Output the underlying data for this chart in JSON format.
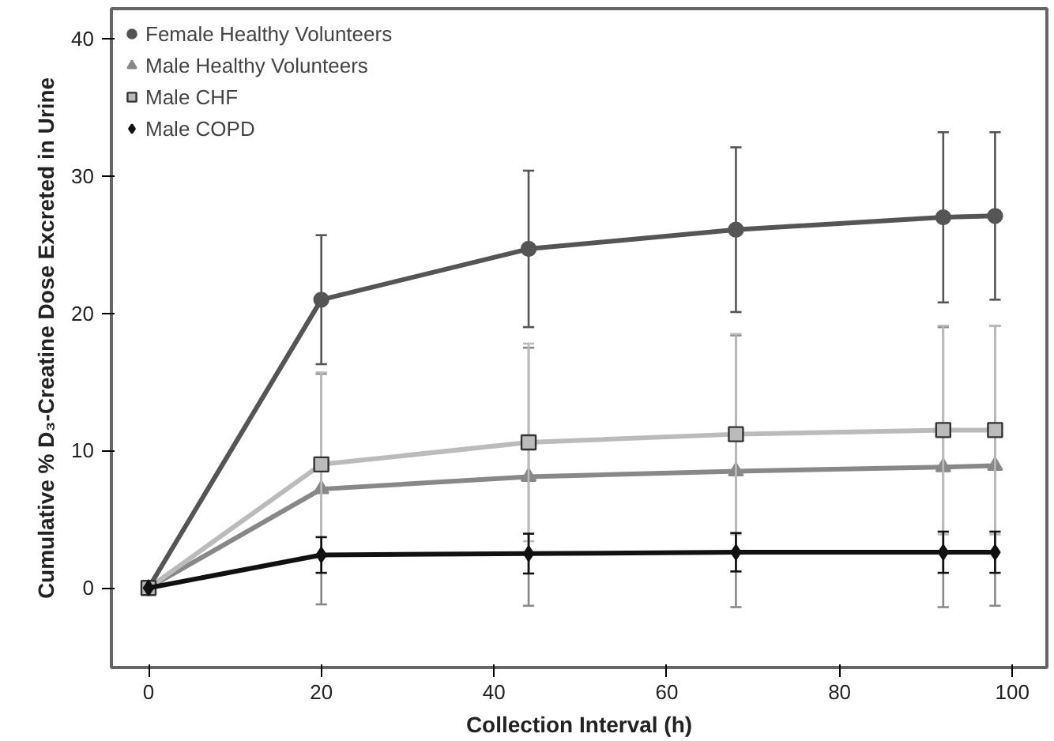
{
  "chart_data": {
    "type": "line",
    "xlabel": "Collection Interval (h)",
    "ylabel": "Cumulative % D₃-Creatine Dose Excreted in Urine",
    "x": [
      0,
      20,
      44,
      68,
      92,
      98
    ],
    "xlim": [
      -4.3,
      104
    ],
    "xticks": [
      0,
      20,
      40,
      60,
      80,
      100
    ],
    "ylim": [
      -5.8,
      42.2
    ],
    "yticks": [
      0,
      10,
      20,
      30,
      40
    ],
    "grid": false,
    "legend": "top left",
    "series": [
      {
        "name": "Female Healthy Volunteers",
        "color": "#555555",
        "marker": "circle",
        "values": [
          0,
          21.0,
          24.7,
          26.1,
          27.0,
          27.1
        ],
        "errors": [
          null,
          4.7,
          5.7,
          6.0,
          6.2,
          6.1
        ]
      },
      {
        "name": "Male Healthy Volunteers",
        "color": "#888888",
        "marker": "triangle",
        "values": [
          0,
          7.2,
          8.1,
          8.5,
          8.8,
          8.9
        ],
        "errors": [
          null,
          8.4,
          9.4,
          9.9,
          10.2,
          10.2
        ]
      },
      {
        "name": "Male CHF",
        "color": "#bbbbbb",
        "marker": "square",
        "values": [
          0,
          9.0,
          10.6,
          11.2,
          11.5,
          11.5
        ],
        "errors": [
          null,
          6.7,
          7.2,
          7.3,
          7.6,
          7.6
        ]
      },
      {
        "name": "Male COPD",
        "color": "#111111",
        "marker": "diamond",
        "values": [
          0,
          2.4,
          2.5,
          2.6,
          2.6,
          2.6
        ],
        "errors": [
          null,
          1.3,
          1.45,
          1.4,
          1.5,
          1.5
        ]
      }
    ]
  }
}
